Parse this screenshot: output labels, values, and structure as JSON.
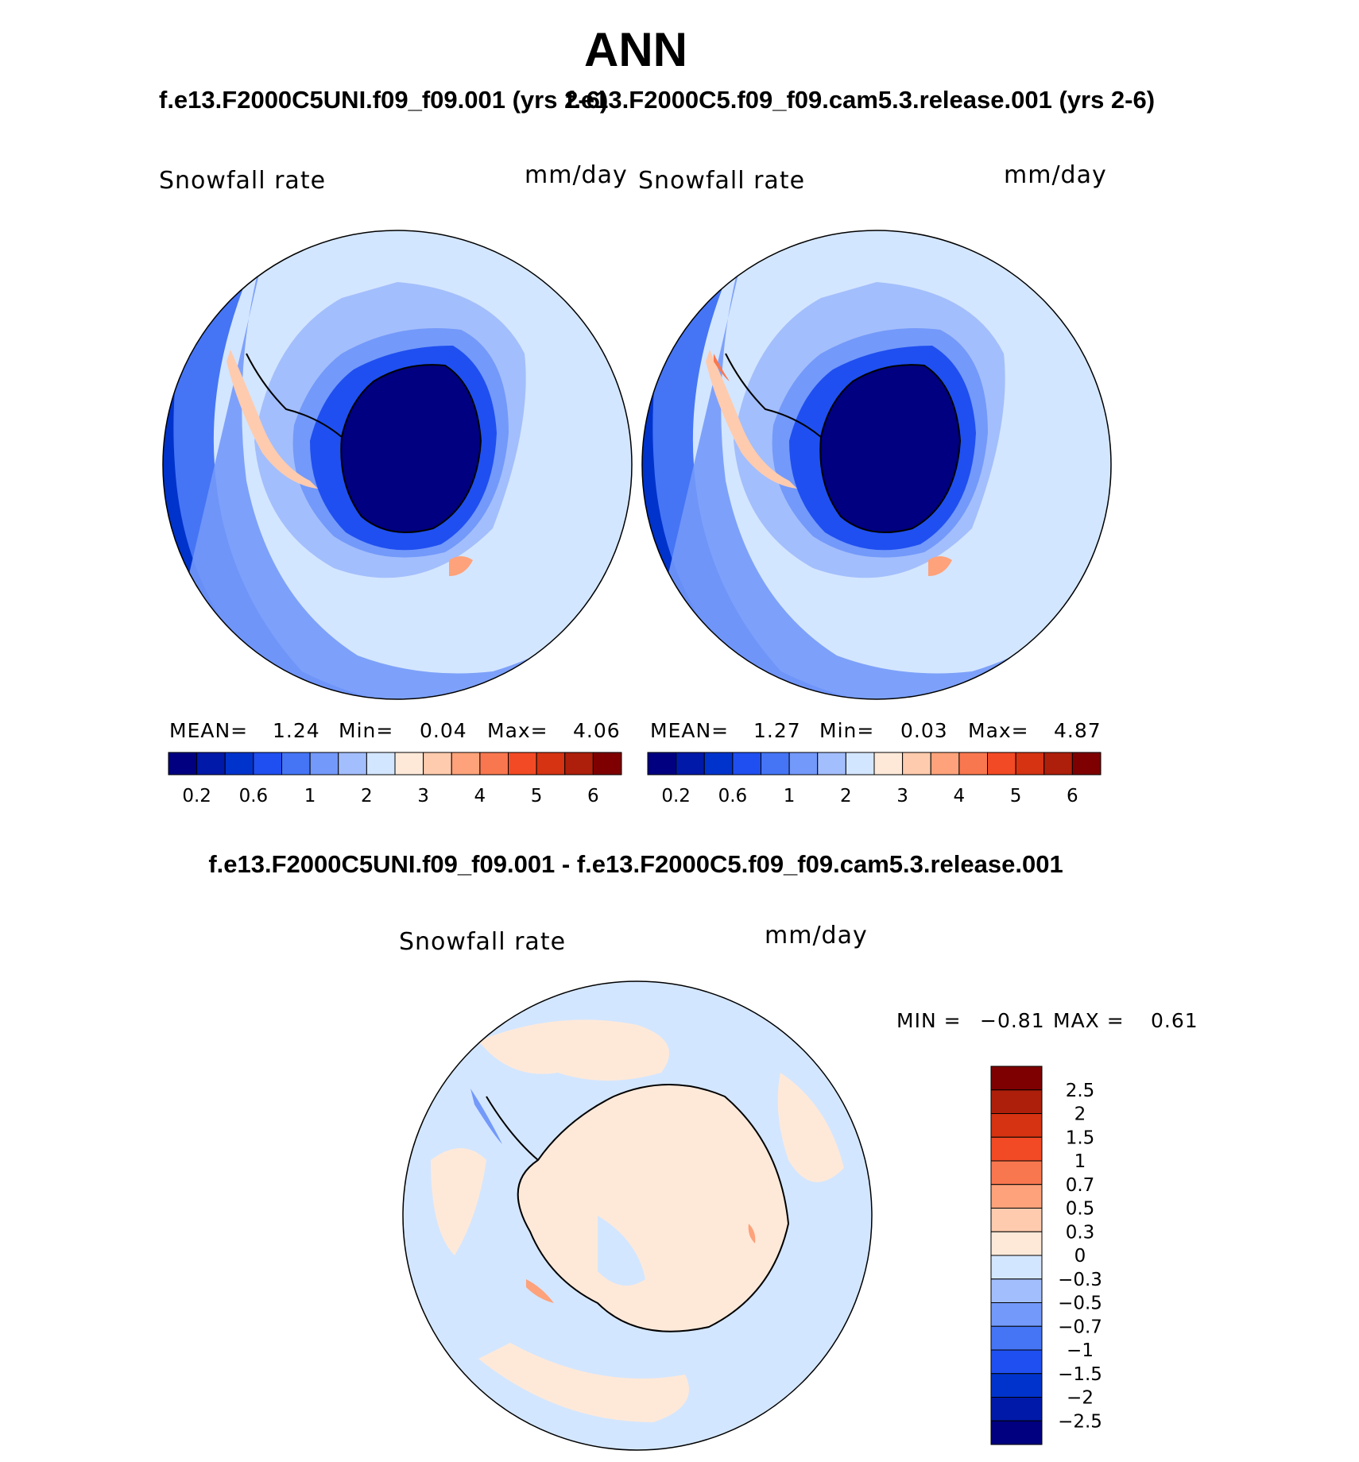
{
  "figure": {
    "title": "ANN",
    "colors": {
      "seq_cmap": [
        "#000080",
        "#0019A8",
        "#0033CC",
        "#1F4FF0",
        "#4575F5",
        "#7399FA",
        "#A3BEFC",
        "#D3E6FF",
        "#FEE9D9",
        "#FECBAE",
        "#FDA27A",
        "#F9774F",
        "#F24A24",
        "#D53312",
        "#AD1F0A",
        "#7E0000"
      ],
      "diff_cmap": [
        "#000080",
        "#0019A8",
        "#0033CC",
        "#1F4FF0",
        "#4575F5",
        "#7399FA",
        "#A3BEFC",
        "#D3E6FF",
        "#FEE9D9",
        "#FECBAE",
        "#FDA27A",
        "#F9774F",
        "#F24A24",
        "#D53312",
        "#AD1F0A",
        "#7E0000"
      ],
      "coastline": "#000000"
    }
  },
  "panels": [
    {
      "case_title": "f.e13.F2000C5UNI.f09_f09.001 (yrs 2-6)",
      "variable": "Snowfall rate",
      "units": "mm/day",
      "mean_label": "MEAN=",
      "mean_value": "1.24",
      "min_label": "Min=",
      "min_value": "0.04",
      "max_label": "Max=",
      "max_value": "4.06"
    },
    {
      "case_title": "f.e13.F2000C5.f09_f09.cam5.3.release.001 (yrs 2-6)",
      "variable": "Snowfall rate",
      "units": "mm/day",
      "mean_label": "MEAN=",
      "mean_value": "1.27",
      "min_label": "Min=",
      "min_value": "0.03",
      "max_label": "Max=",
      "max_value": "4.87"
    }
  ],
  "difference": {
    "title": "f.e13.F2000C5UNI.f09_f09.001 - f.e13.F2000C5.f09_f09.cam5.3.release.001",
    "variable": "Snowfall rate",
    "units": "mm/day",
    "min_label": "MIN =",
    "min_value": "−0.81",
    "max_label": "MAX =",
    "max_value": "0.61"
  },
  "chart_data": [
    {
      "type": "heatmap",
      "projection": "south-polar-stereographic",
      "variable": "Snowfall rate",
      "units": "mm/day",
      "mean": 1.24,
      "min": 0.04,
      "max": 4.06,
      "colorbar_ticks": [
        "0.2",
        "0.6",
        "1",
        "2",
        "3",
        "4",
        "5",
        "6"
      ],
      "colorbar_levels": [
        0.1,
        0.2,
        0.4,
        0.6,
        0.8,
        1,
        1.5,
        2,
        2.5,
        3,
        3.5,
        4,
        4.5,
        5,
        5.5,
        6,
        7
      ],
      "legend_position": "bottom"
    },
    {
      "type": "heatmap",
      "projection": "south-polar-stereographic",
      "variable": "Snowfall rate",
      "units": "mm/day",
      "mean": 1.27,
      "min": 0.03,
      "max": 4.87,
      "colorbar_ticks": [
        "0.2",
        "0.6",
        "1",
        "2",
        "3",
        "4",
        "5",
        "6"
      ],
      "colorbar_levels": [
        0.1,
        0.2,
        0.4,
        0.6,
        0.8,
        1,
        1.5,
        2,
        2.5,
        3,
        3.5,
        4,
        4.5,
        5,
        5.5,
        6,
        7
      ],
      "legend_position": "bottom"
    },
    {
      "type": "heatmap",
      "projection": "south-polar-stereographic",
      "variable": "Snowfall rate",
      "units": "mm/day",
      "min": -0.81,
      "max": 0.61,
      "colorbar_ticks": [
        "2.5",
        "2",
        "1.5",
        "1",
        "0.7",
        "0.5",
        "0.3",
        "0",
        "−0.3",
        "−0.5",
        "−0.7",
        "−1",
        "−1.5",
        "−2",
        "−2.5"
      ],
      "colorbar_levels": [
        -3,
        -2.5,
        -2,
        -1.5,
        -1,
        -0.7,
        -0.5,
        -0.3,
        0,
        0.3,
        0.5,
        0.7,
        1,
        1.5,
        2,
        2.5,
        3
      ],
      "legend_position": "right"
    }
  ]
}
